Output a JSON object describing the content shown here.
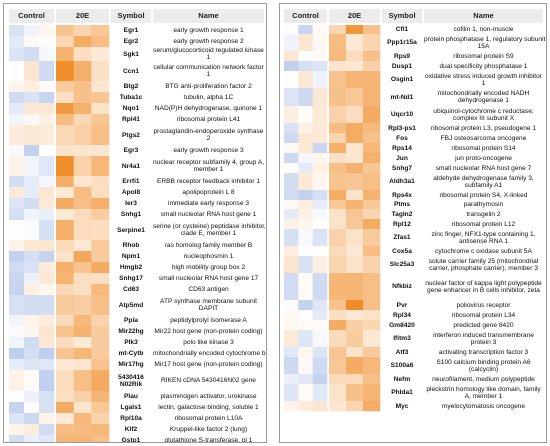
{
  "panels": [
    {
      "headers": {
        "control": "Control",
        "treat": "20E",
        "symbol": "Symbol",
        "name": "Name"
      },
      "rows": [
        {
          "symbol": "Egr1",
          "name": [
            "early growth response 1"
          ]
        },
        {
          "symbol": "Egr2",
          "name": [
            "early growth response 2"
          ]
        },
        {
          "symbol": "Sgk1",
          "name": [
            "serum/glucocorticoid regulated kinase",
            "1"
          ]
        },
        {
          "symbol": "Ccn1",
          "name": [
            "cellular communication network factor",
            "1"
          ]
        },
        {
          "symbol": "Btg2",
          "name": [
            "BTG anti-proliferation factor 2"
          ]
        },
        {
          "symbol": "Tuba1c",
          "name": [
            "tubulin, alpha 1C"
          ]
        },
        {
          "symbol": "Nqo1",
          "name": [
            "NAD(P)H dehydrogenase, quinone 1"
          ]
        },
        {
          "symbol": "Rpl41",
          "name": [
            "ribosomal protein L41"
          ]
        },
        {
          "symbol": "Ptgs2",
          "name": [
            "prostaglandin-endoperoxide synthase",
            "2"
          ]
        },
        {
          "symbol": "Egr3",
          "name": [
            "early growth response 3"
          ]
        },
        {
          "symbol": "Nr4a1",
          "name": [
            "nuclear receptor subfamily 4, group A,",
            "member 1"
          ]
        },
        {
          "symbol": "Errfi1",
          "name": [
            "ERBB receptor feedback inhibitor 1"
          ]
        },
        {
          "symbol": "Apol8",
          "name": [
            "apolipoprotein L 8"
          ]
        },
        {
          "symbol": "Ier3",
          "name": [
            "immediate early response 3"
          ]
        },
        {
          "symbol": "Snhg1",
          "name": [
            "small nucleolar RNA host gene 1"
          ]
        },
        {
          "symbol": "Serpine1",
          "name": [
            "serine (or cysteine) peptidase inhibitor,",
            "clade E, member 1"
          ]
        },
        {
          "symbol": "Rhob",
          "name": [
            "ras homolog family member B"
          ]
        },
        {
          "symbol": "Npm1",
          "name": [
            "nucleophosmin 1"
          ]
        },
        {
          "symbol": "Hmgb2",
          "name": [
            "high mobility group box 2"
          ]
        },
        {
          "symbol": "Snhg17",
          "name": [
            "small nucleolar RNA host gene 17"
          ]
        },
        {
          "symbol": "Cd63",
          "name": [
            "CD63 antigen"
          ]
        },
        {
          "symbol": "Atp5md",
          "name": [
            "ATP synthase membrane subunit",
            "DAPIT"
          ]
        },
        {
          "symbol": "Ppia",
          "name": [
            "peptidylprolyl isomerase A"
          ]
        },
        {
          "symbol": "Mir22hg",
          "name": [
            "Mir22 host gene (non-protein coding)"
          ]
        },
        {
          "symbol": "Plk3",
          "name": [
            "polo like kinase 3"
          ]
        },
        {
          "symbol": "mt-Cytb",
          "name": [
            "mitochondrially encoded cytochrome b"
          ]
        },
        {
          "symbol": "Mir17hg",
          "name": [
            "Mir17 host gene (non-protein coding)"
          ]
        },
        {
          "symbol": [
            "5430416",
            "N02Rik"
          ],
          "name": [
            "RIKEN cDNA 5430416N02 gene"
          ]
        },
        {
          "symbol": "Plau",
          "name": [
            "plasminogen activator, urokinase"
          ]
        },
        {
          "symbol": "Lgals1",
          "name": [
            "lectin, galactose binding, soluble 1"
          ]
        },
        {
          "symbol": "Rpl10a",
          "name": [
            "ribosomal protein L10A"
          ]
        },
        {
          "symbol": "Klf2",
          "name": [
            "Kruppel-like factor 2 (lung)"
          ]
        },
        {
          "symbol": "Gstp1",
          "name": [
            "glutathione S-transferase, pi 1"
          ]
        },
        {
          "symbol": "Anp32b",
          "name": [
            "acidic (leucine-rich) nuclear",
            "phosphoprotein 32 family, member B"
          ]
        }
      ]
    },
    {
      "headers": {
        "control": "Control",
        "treat": "20E",
        "symbol": "Symbol",
        "name": "Name"
      },
      "rows": [
        {
          "symbol": "Cfl1",
          "name": [
            "cofilin 1, non-muscle"
          ]
        },
        {
          "symbol": "Ppp1r15a",
          "name": [
            "protein phosphatase 1, regulatory subunit",
            "15A"
          ]
        },
        {
          "symbol": "Rps9",
          "name": [
            "ribosomal protein S9"
          ]
        },
        {
          "symbol": "Dusp1",
          "name": [
            "dual specificity phosphatase 1"
          ]
        },
        {
          "symbol": "Osgin1",
          "name": [
            "oxidative stress induced growth inhibitor",
            "1"
          ]
        },
        {
          "symbol": "mt-Nd1",
          "name": [
            "mitochondrially encoded NADH",
            "dehydrogenase 1"
          ]
        },
        {
          "symbol": "Uqcr10",
          "name": [
            "ubiquinol-cytochrome c reductase,",
            "complex III subunit X"
          ]
        },
        {
          "symbol": "Rpl3-ps1",
          "name": [
            "ribosomal protein L3, pseudogene 1"
          ]
        },
        {
          "symbol": "Fos",
          "name": [
            "FBJ osteosarcoma oncogene"
          ]
        },
        {
          "symbol": "Rps14",
          "name": [
            "ribosomal protein S14"
          ]
        },
        {
          "symbol": "Jun",
          "name": [
            "jun proto-oncogene"
          ]
        },
        {
          "symbol": "Snhg7",
          "name": [
            "small nucleolar RNA host gene 7"
          ]
        },
        {
          "symbol": "Aldh3a1",
          "name": [
            "aldehyde dehydrogenase family 3,",
            "subfamily A1"
          ]
        },
        {
          "symbol": "Rps4x",
          "name": [
            "ribosomal protein S4, X-linked"
          ]
        },
        {
          "symbol": "Ptms",
          "name": [
            "parathymosin"
          ]
        },
        {
          "symbol": "Tagln2",
          "name": [
            "transgelin 2"
          ]
        },
        {
          "symbol": "Rpl12",
          "name": [
            "ribosomal protein L12"
          ]
        },
        {
          "symbol": "Zfas1",
          "name": [
            "zinc finger, NFX1-type containing 1,",
            "antisense RNA 1"
          ]
        },
        {
          "symbol": "Cox5a",
          "name": [
            "cytochrome c oxidase subunit 5A"
          ]
        },
        {
          "symbol": "Slc25a3",
          "name": [
            "solute carrier family 25 (mitochondrial",
            "carrier, phosphate carrier), member 3"
          ]
        },
        {
          "symbol": "Nfkbiz",
          "name": [
            "nuclear factor of kappa light polypeptide",
            "gene enhancer in B cells inhibitor, zeta"
          ]
        },
        {
          "symbol": "Pvr",
          "name": [
            "poliovirus receptor"
          ]
        },
        {
          "symbol": "Rpl34",
          "name": [
            "ribosomal protein L34"
          ]
        },
        {
          "symbol": "Gm8420",
          "name": [
            "predicted gene 8420"
          ]
        },
        {
          "symbol": "Ifitm3",
          "name": [
            "interferon induced transmembrane",
            "protein 3"
          ]
        },
        {
          "symbol": "Atf3",
          "name": [
            "activating transcription factor 3"
          ]
        },
        {
          "symbol": "S100a6",
          "name": [
            "S100 calcium binding protein A6",
            "(calcyclin)"
          ]
        },
        {
          "symbol": "Nefm",
          "name": [
            "neurofilament, medium polypeptide"
          ]
        },
        {
          "symbol": "Phlda1",
          "name": [
            "pleckstrin homology like domain, family",
            "A, member 1"
          ]
        },
        {
          "symbol": "Myc",
          "name": [
            "myelocytomatosis oncogene"
          ]
        }
      ]
    }
  ],
  "colors": {
    "high": "#f08a24",
    "low": "#3c6cc8",
    "neutral": "#ffffff"
  }
}
